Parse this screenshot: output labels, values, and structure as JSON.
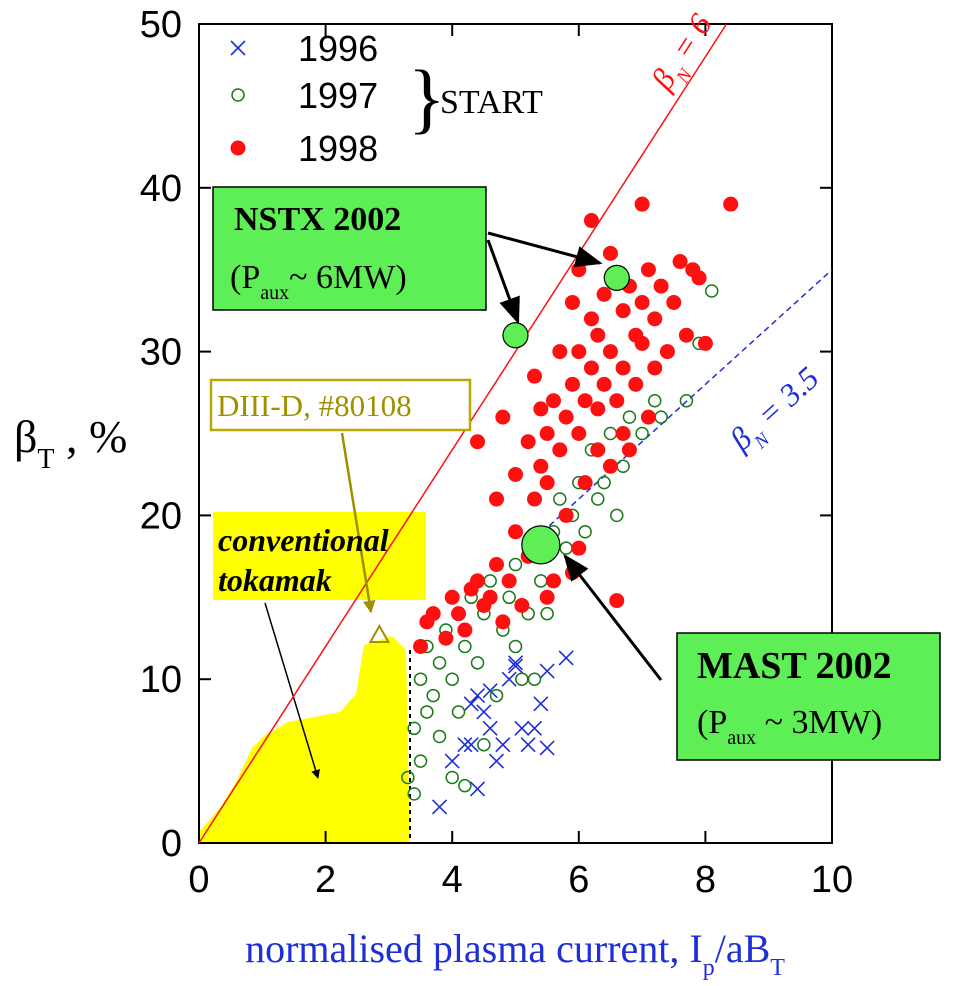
{
  "chart_data": {
    "type": "scatter",
    "xlabel": [
      "normalised plasma current, I",
      "p",
      "/aB",
      "T"
    ],
    "ylabel": [
      "β",
      "T",
      " , %"
    ],
    "xlim": [
      0,
      10
    ],
    "xticks": [
      0,
      2,
      4,
      6,
      8,
      10
    ],
    "ylim": [
      0,
      50
    ],
    "yticks": [
      0,
      10,
      20,
      30,
      40,
      50
    ],
    "legend_group": "START",
    "series": [
      {
        "name": "1996",
        "color": "#1e2fd8",
        "marker": "x",
        "x": [
          3.8,
          4.4,
          4.0,
          4.2,
          4.3,
          4.4,
          4.5,
          4.6,
          4.7,
          4.8,
          4.9,
          5.0,
          5.1,
          5.2,
          5.3,
          5.4,
          5.5,
          5.5,
          5.8,
          5.0,
          4.3,
          4.6
        ],
        "values": [
          2.2,
          3.3,
          5,
          6,
          8.5,
          9,
          8,
          7,
          5,
          6,
          10,
          11,
          7,
          6,
          7,
          8.5,
          5.8,
          10.5,
          11.3,
          10.8,
          6,
          9.3
        ]
      },
      {
        "name": "1997",
        "color": "#1a7a1a",
        "marker": "open-circle",
        "x": [
          3.3,
          3.4,
          3.5,
          3.4,
          3.6,
          3.5,
          3.7,
          3.6,
          3.8,
          3.9,
          4.0,
          4.0,
          4.1,
          4.2,
          4.3,
          4.4,
          4.5,
          4.6,
          4.7,
          4.8,
          4.9,
          5.0,
          5.0,
          5.1,
          5.2,
          5.3,
          5.4,
          5.5,
          5.6,
          5.7,
          5.8,
          5.9,
          6.0,
          6.1,
          6.2,
          6.3,
          6.4,
          6.5,
          6.6,
          6.7,
          6.8,
          7.0,
          7.2,
          7.3,
          7.7,
          7.9,
          8.1,
          4.2,
          4.5,
          3.8
        ],
        "values": [
          4,
          3,
          5,
          7,
          8,
          10,
          9,
          12,
          11,
          13,
          4,
          10,
          8,
          12,
          15,
          11,
          14,
          16,
          9,
          13,
          15,
          12,
          17,
          10,
          14,
          10,
          16,
          14,
          19,
          21,
          18,
          20,
          22,
          19,
          24,
          21,
          22,
          25,
          20,
          23,
          26,
          25,
          27,
          26,
          27,
          30.5,
          33.7,
          3.5,
          6,
          6.5
        ]
      },
      {
        "name": "1998",
        "color": "#ff1010",
        "marker": "filled-circle",
        "x": [
          3.5,
          3.6,
          3.7,
          3.9,
          4.0,
          4.1,
          4.2,
          4.3,
          4.4,
          4.4,
          4.5,
          4.6,
          4.7,
          4.7,
          4.8,
          4.8,
          4.9,
          5.0,
          5.0,
          5.1,
          5.2,
          5.2,
          5.3,
          5.3,
          5.4,
          5.4,
          5.5,
          5.5,
          5.6,
          5.6,
          5.7,
          5.7,
          5.8,
          5.8,
          5.9,
          5.9,
          6.0,
          6.0,
          6.0,
          6.1,
          6.1,
          6.2,
          6.2,
          6.2,
          6.3,
          6.3,
          6.3,
          6.4,
          6.4,
          6.5,
          6.5,
          6.5,
          6.6,
          6.6,
          6.7,
          6.7,
          6.7,
          6.8,
          6.8,
          6.9,
          6.9,
          7.0,
          7.0,
          7.0,
          7.1,
          7.1,
          7.2,
          7.2,
          7.3,
          7.4,
          7.5,
          7.6,
          7.7,
          7.8,
          7.9,
          8.0,
          8.4,
          5.9,
          6.0,
          5.5
        ],
        "values": [
          12,
          13.5,
          14,
          12.5,
          15,
          14,
          13,
          15.5,
          16,
          24.5,
          14.5,
          15,
          17,
          21,
          13.5,
          26,
          16,
          19,
          22.5,
          14.5,
          24.5,
          17.5,
          21,
          28.5,
          23,
          26.5,
          22,
          25,
          27,
          16,
          24,
          30,
          26,
          20,
          28,
          33,
          25,
          30,
          35,
          22,
          27,
          29,
          32,
          38,
          24,
          26.5,
          31,
          28,
          33.5,
          23,
          30,
          36,
          27,
          14.8,
          25,
          29,
          32.5,
          24,
          34,
          28,
          31,
          30.5,
          33,
          39,
          26,
          35,
          29,
          32,
          34,
          30,
          33,
          35.5,
          31,
          35,
          34.5,
          30.5,
          39,
          16.5,
          18,
          15
        ]
      }
    ],
    "lines": [
      {
        "label": [
          "β",
          "N",
          " = 6"
        ],
        "slope": 6,
        "color": "#ff1010",
        "xrange": [
          0,
          10
        ]
      },
      {
        "label": [
          "β",
          "N",
          " = 3.5"
        ],
        "slope": 3.5,
        "color": "#1e2fd8",
        "xrange": [
          5.3,
          10
        ]
      }
    ],
    "annotations": [
      {
        "title": "NSTX 2002",
        "subtitle": [
          "(P",
          "aux",
          "~ 6MW)"
        ],
        "points_x": [
          5.0,
          6.6
        ],
        "points_y": [
          31,
          34.5
        ]
      },
      {
        "title": "MAST 2002",
        "subtitle": [
          "(P",
          "aux",
          " ~ 3MW)"
        ],
        "points_x": [
          5.4
        ],
        "points_y": [
          18.2
        ]
      },
      {
        "title": "DIII-D, #80108",
        "points_x": [
          2.85
        ],
        "points_y": [
          12.7
        ]
      }
    ],
    "region_label": [
      "conventional",
      "tokamak"
    ]
  }
}
